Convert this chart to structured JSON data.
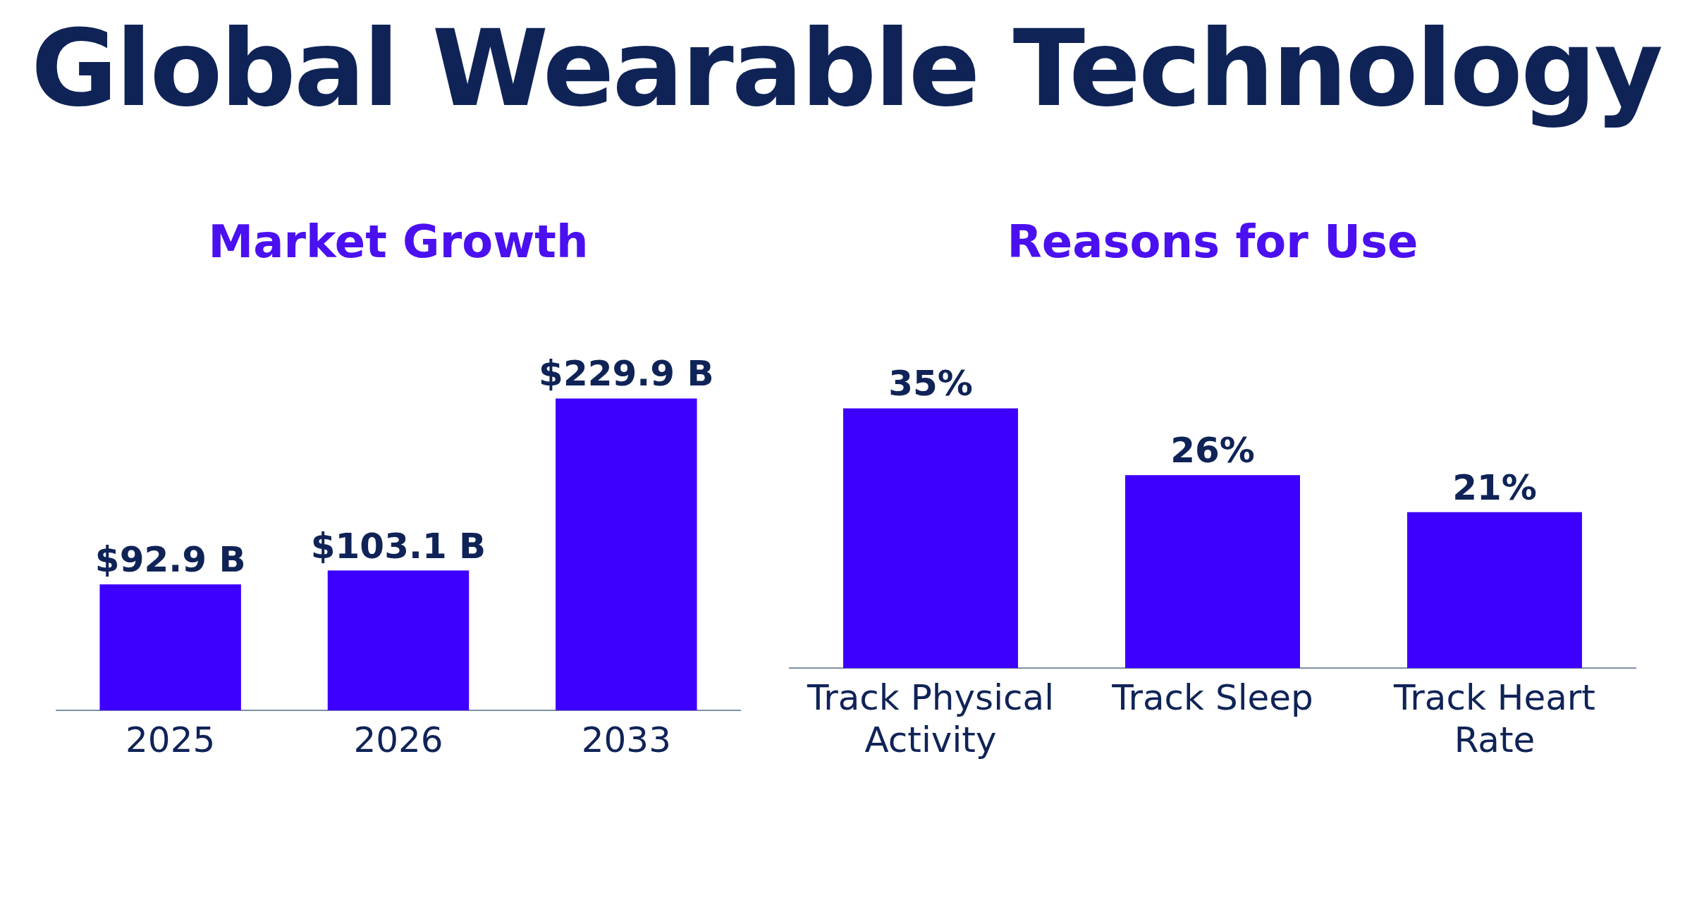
{
  "chart_data": [
    {
      "type": "other",
      "title": "Global Wearable Technology"
    },
    {
      "type": "bar",
      "title": "Market Growth",
      "categories": [
        "2025",
        "2026",
        "2033"
      ],
      "values": [
        92.9,
        103.1,
        229.9
      ],
      "color": "#3d00ff",
      "value_labels": [
        "$92.9 B",
        "$103.1 B",
        "$229.9 B"
      ],
      "tick_labels": "x",
      "grid": false,
      "legend": false
    },
    {
      "type": "bar",
      "title": "Reasons for Use",
      "categories": [
        "Track Physical Activity",
        "Track Sleep",
        "Track Heart Rate"
      ],
      "values": [
        35,
        26,
        21
      ],
      "color": "#3d00ff",
      "value_labels": [
        "35%",
        "26%",
        "21%"
      ],
      "tick_labels": "x",
      "grid": false,
      "legend": false
    }
  ]
}
